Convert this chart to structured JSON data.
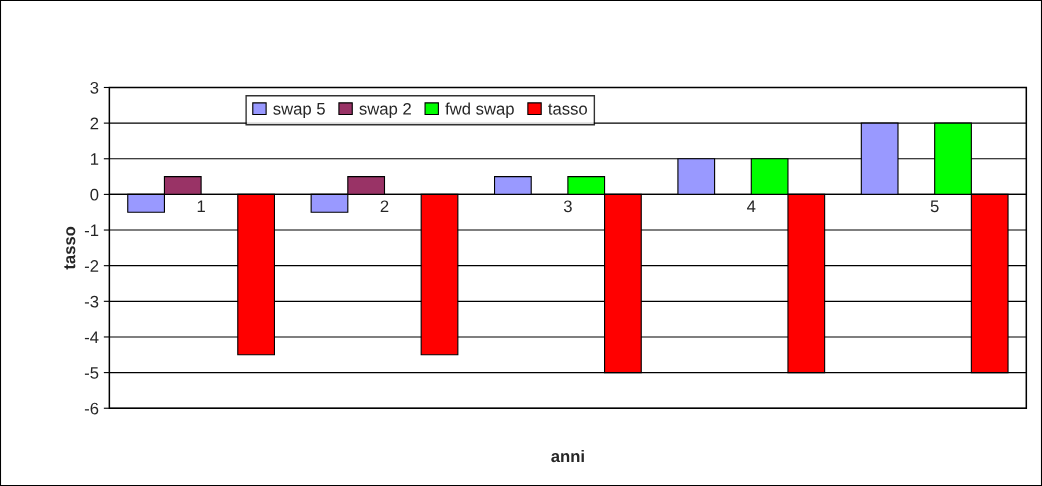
{
  "chart_data": {
    "type": "bar",
    "xlabel": "anni",
    "ylabel": "tasso",
    "categories": [
      "1",
      "2",
      "3",
      "4",
      "5"
    ],
    "series": [
      {
        "name": "swap 5",
        "color": "#9999ff",
        "values": [
          -0.5,
          -0.5,
          0.5,
          1,
          2
        ]
      },
      {
        "name": "swap 2",
        "color": "#993366",
        "values": [
          0.5,
          0.5,
          null,
          null,
          null
        ]
      },
      {
        "name": "fwd swap",
        "color": "#00ff00",
        "values": [
          null,
          null,
          0.5,
          1,
          2
        ]
      },
      {
        "name": "tasso",
        "color": "#ff0000",
        "values": [
          -4.5,
          -4.5,
          -5,
          -5,
          -5
        ]
      }
    ],
    "ylim": [
      -6,
      3
    ],
    "yticks": [
      -6,
      -5,
      -4,
      -3,
      -2,
      -1,
      0,
      1,
      2,
      3
    ],
    "grid": "y",
    "legend": "top left"
  }
}
